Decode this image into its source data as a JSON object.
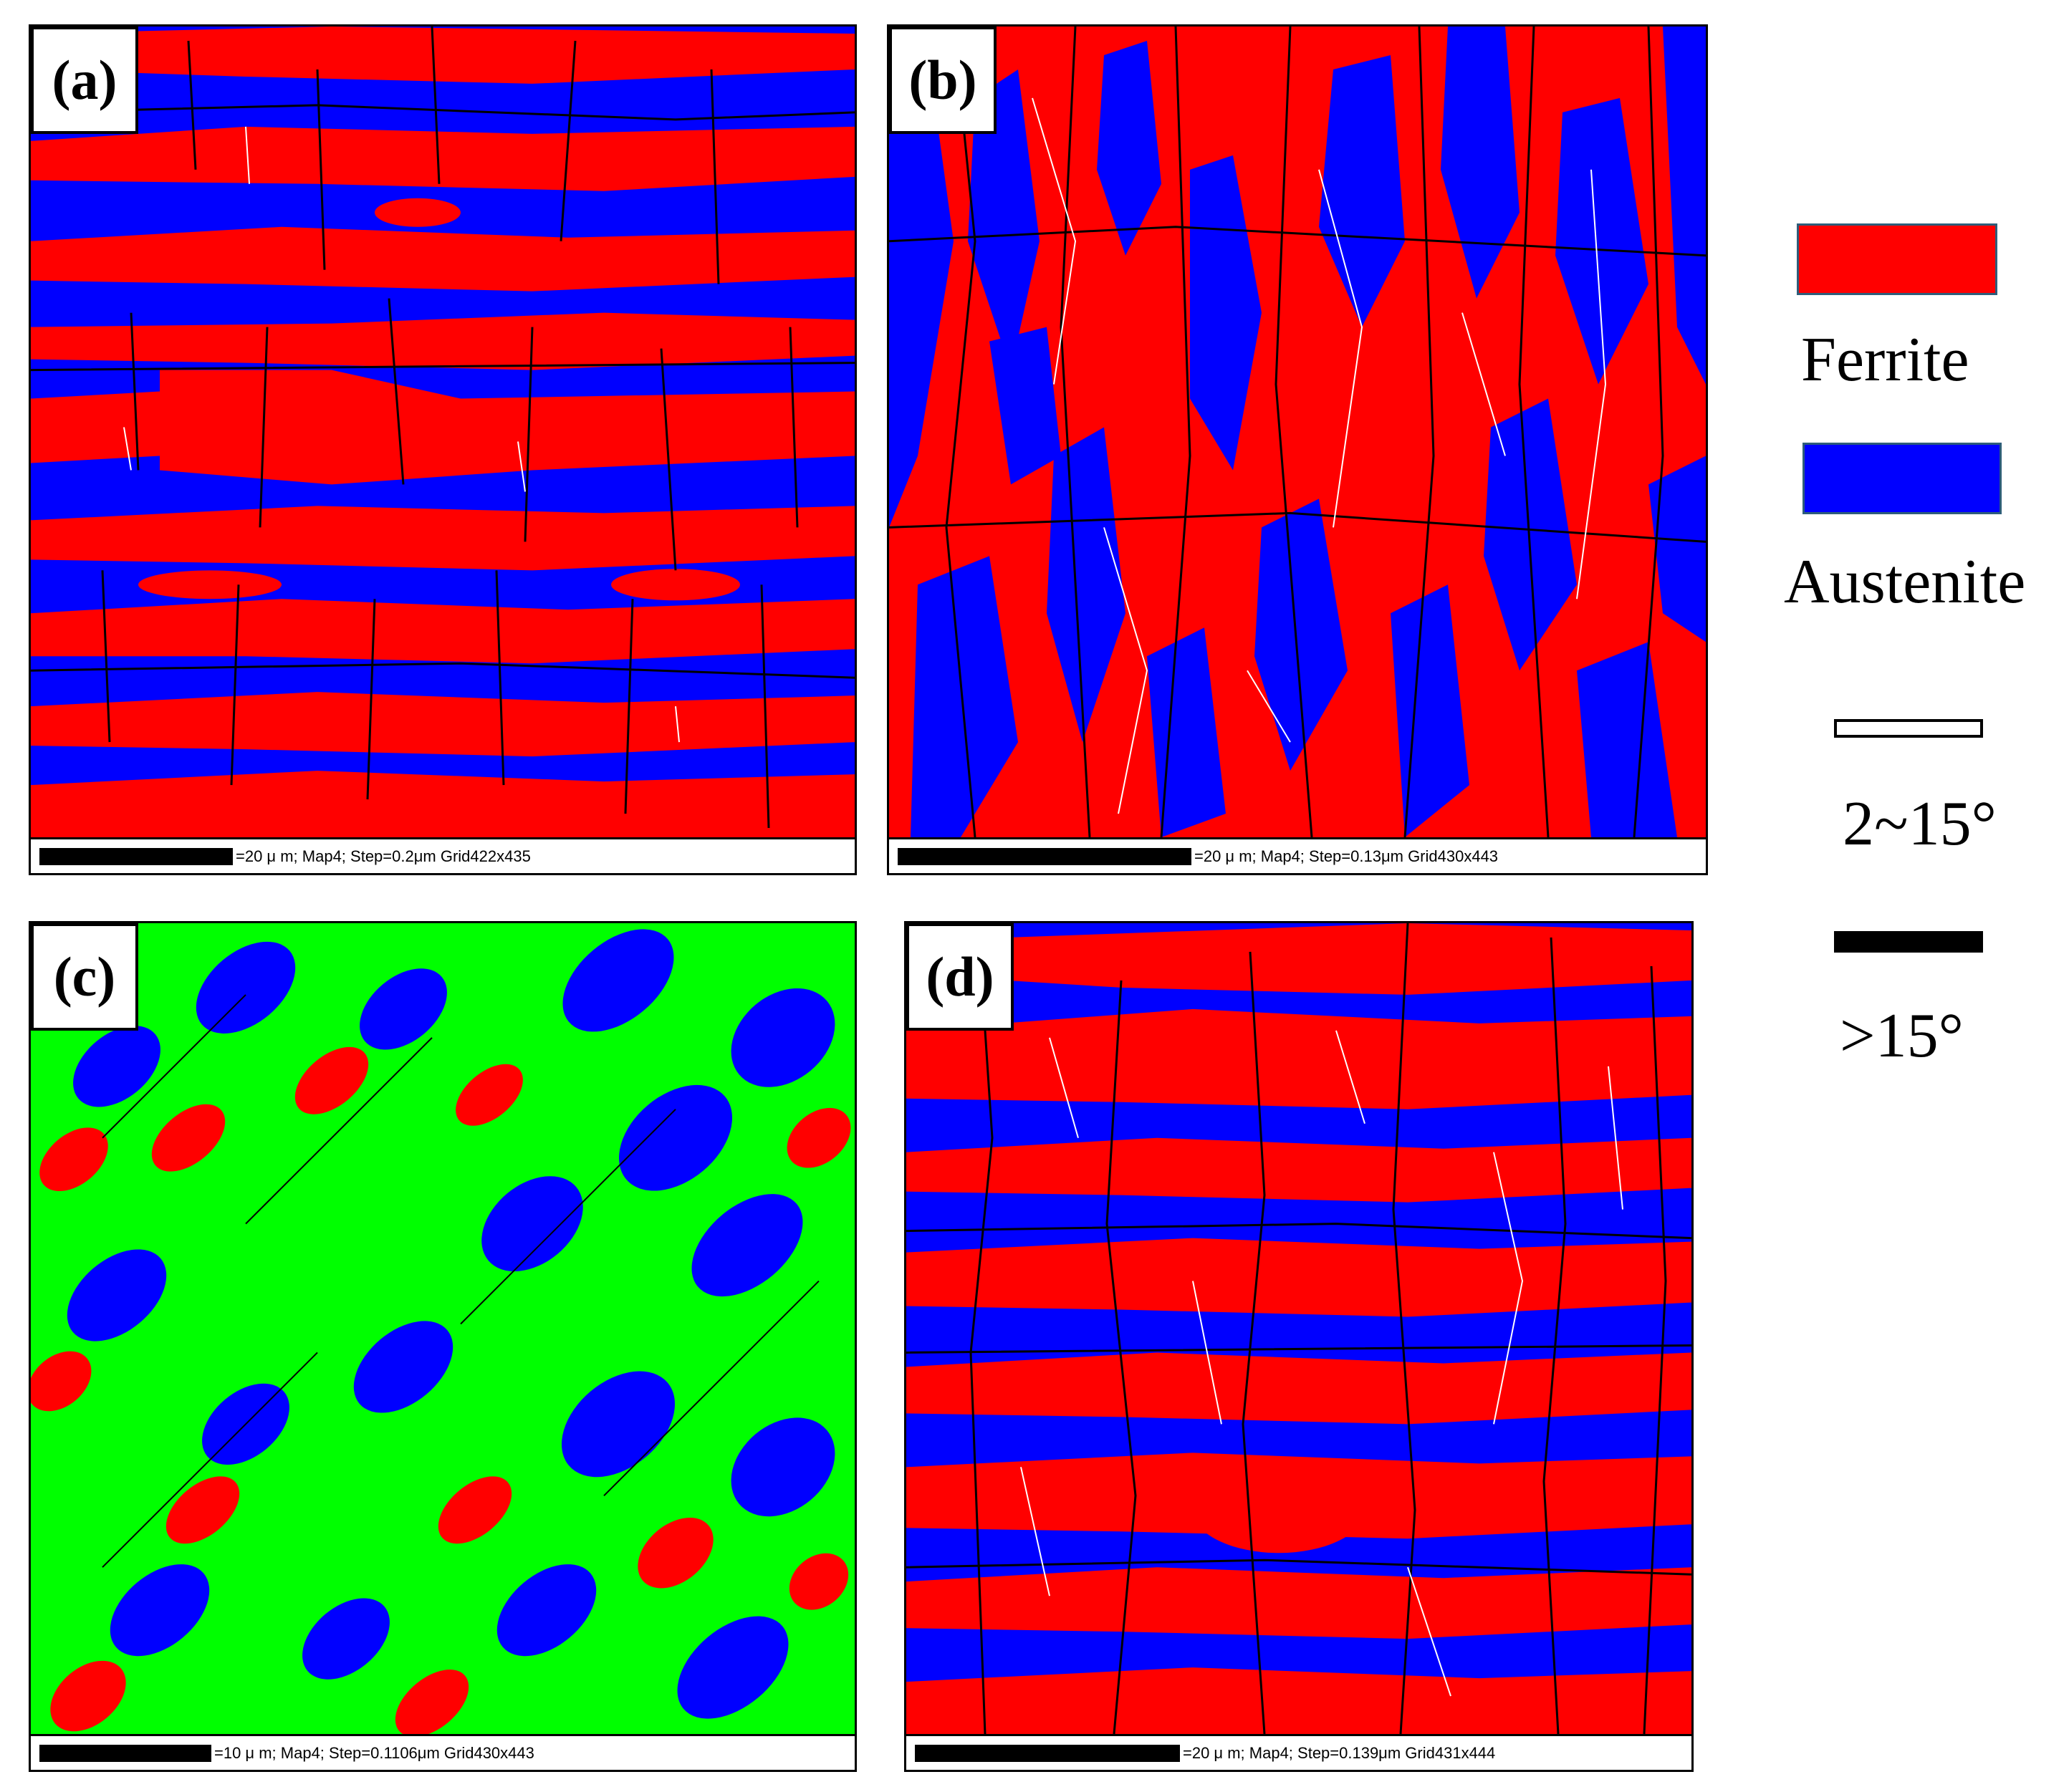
{
  "panels": [
    {
      "label": "(a)",
      "scale_text": "=20 μ m; Map4; Step=0.2μm Grid422x435"
    },
    {
      "label": "(b)",
      "scale_text": "=20 μ m; Map4; Step=0.13μm Grid430x443"
    },
    {
      "label": "(c)",
      "scale_text": "=10 μ m; Map4; Step=0.1106μm Grid430x443"
    },
    {
      "label": "(d)",
      "scale_text": "=20 μ m; Map4; Step=0.139μm Grid431x444"
    }
  ],
  "legend": {
    "ferrite": {
      "label": "Ferrite",
      "color": "#ff0000"
    },
    "austenite": {
      "label": "Austenite",
      "color": "#0000ff"
    },
    "low_angle": {
      "label": "2~15°",
      "color": "#ffffff"
    },
    "high_angle": {
      "label": ">15°",
      "color": "#000000"
    }
  },
  "colors": {
    "third_phase": "#00ff00"
  }
}
